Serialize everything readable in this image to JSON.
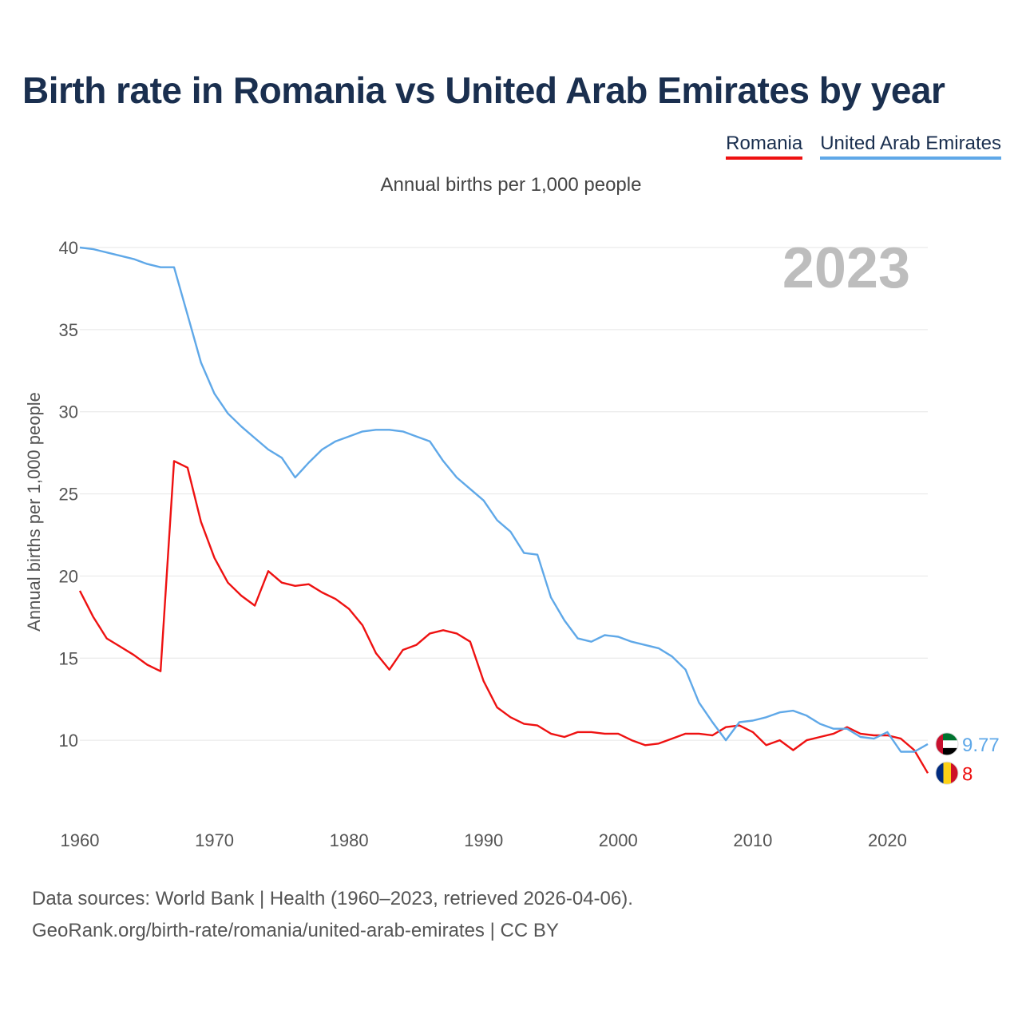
{
  "title": "Birth rate in Romania vs United Arab Emirates by year",
  "subtitle": "Annual births per 1,000 people",
  "legend": [
    {
      "name": "Romania",
      "color": "#ee1111"
    },
    {
      "name": "United Arab Emirates",
      "color": "#5fa8e8"
    }
  ],
  "chart_data": {
    "type": "line",
    "title": "Birth rate in Romania vs United Arab Emirates by year",
    "ylabel": "Annual births per 1,000 people",
    "xlabel": "",
    "xlim": [
      1960,
      2023
    ],
    "ylim": [
      5,
      40
    ],
    "yticks": [
      10,
      15,
      20,
      25,
      30,
      35,
      40
    ],
    "xticks": [
      1960,
      1970,
      1980,
      1990,
      2000,
      2010,
      2020
    ],
    "year_label": "2023",
    "x": [
      1960,
      1961,
      1962,
      1963,
      1964,
      1965,
      1966,
      1967,
      1968,
      1969,
      1970,
      1971,
      1972,
      1973,
      1974,
      1975,
      1976,
      1977,
      1978,
      1979,
      1980,
      1981,
      1982,
      1983,
      1984,
      1985,
      1986,
      1987,
      1988,
      1989,
      1990,
      1991,
      1992,
      1993,
      1994,
      1995,
      1996,
      1997,
      1998,
      1999,
      2000,
      2001,
      2002,
      2003,
      2004,
      2005,
      2006,
      2007,
      2008,
      2009,
      2010,
      2011,
      2012,
      2013,
      2014,
      2015,
      2016,
      2017,
      2018,
      2019,
      2020,
      2021,
      2022,
      2023
    ],
    "series": [
      {
        "name": "Romania",
        "color": "#ee1111",
        "end_label": "8",
        "values": [
          19.1,
          17.5,
          16.2,
          15.7,
          15.2,
          14.6,
          14.2,
          27.0,
          26.6,
          23.3,
          21.1,
          19.6,
          18.8,
          18.2,
          20.3,
          19.6,
          19.4,
          19.5,
          19.0,
          18.6,
          18.0,
          17.0,
          15.3,
          14.3,
          15.5,
          15.8,
          16.5,
          16.7,
          16.5,
          16.0,
          13.6,
          12.0,
          11.4,
          11.0,
          10.9,
          10.4,
          10.2,
          10.5,
          10.5,
          10.4,
          10.4,
          10.0,
          9.7,
          9.8,
          10.1,
          10.4,
          10.4,
          10.3,
          10.8,
          10.9,
          10.5,
          9.7,
          10.0,
          9.4,
          10.0,
          10.2,
          10.4,
          10.8,
          10.4,
          10.3,
          10.3,
          10.1,
          9.4,
          8.0
        ]
      },
      {
        "name": "United Arab Emirates",
        "color": "#5fa8e8",
        "end_label": "9.77",
        "values": [
          40.0,
          39.9,
          39.7,
          39.5,
          39.3,
          39.0,
          38.8,
          38.8,
          35.9,
          33.0,
          31.1,
          29.9,
          29.1,
          28.4,
          27.7,
          27.2,
          26.0,
          26.9,
          27.7,
          28.2,
          28.5,
          28.8,
          28.9,
          28.9,
          28.8,
          28.5,
          28.2,
          27.0,
          26.0,
          25.3,
          24.6,
          23.4,
          22.7,
          21.4,
          21.3,
          18.7,
          17.3,
          16.2,
          16.0,
          16.4,
          16.3,
          16.0,
          15.8,
          15.6,
          15.1,
          14.3,
          12.3,
          11.1,
          10.0,
          11.1,
          11.2,
          11.4,
          11.7,
          11.8,
          11.5,
          11.0,
          10.7,
          10.7,
          10.2,
          10.1,
          10.5,
          9.3,
          9.3,
          9.77
        ]
      }
    ]
  },
  "sources": {
    "line1": "Data sources: World Bank | Health (1960–2023, retrieved 2026-04-06).",
    "line2": "GeoRank.org/birth-rate/romania/united-arab-emirates | CC BY"
  }
}
